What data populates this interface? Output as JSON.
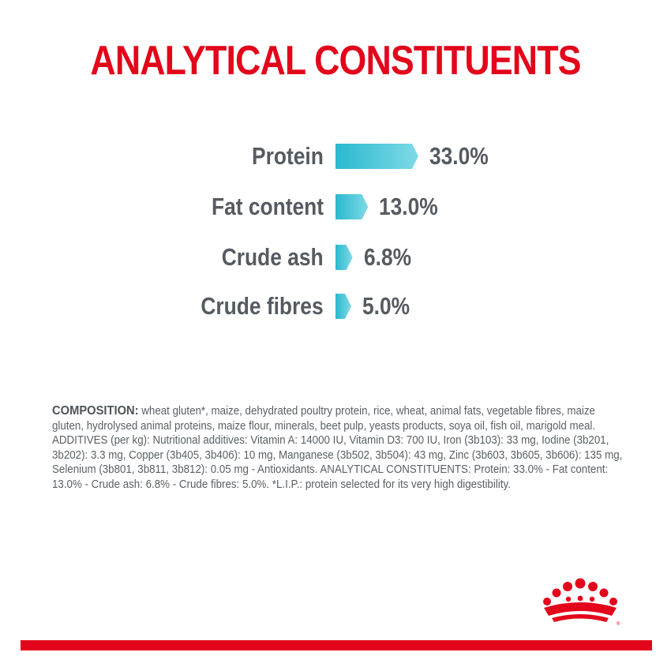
{
  "title": "ANALYTICAL CONSTITUENTS",
  "chart_data": {
    "type": "bar",
    "orientation": "horizontal",
    "categories": [
      "Protein",
      "Fat content",
      "Crude ash",
      "Crude fibres"
    ],
    "values": [
      33.0,
      13.0,
      6.8,
      5.0
    ],
    "value_labels": [
      "33.0%",
      "13.0%",
      "6.8%",
      "5.0%"
    ],
    "unit": "%",
    "title": "ANALYTICAL CONSTITUENTS",
    "xlabel": "",
    "ylabel": "",
    "grid": false,
    "legend": "none",
    "bar_color": "#2ab8cf"
  },
  "composition": {
    "heading": "COMPOSITION:",
    "text": " wheat gluten*, maize, dehydrated poultry protein, rice, wheat, animal fats, vegetable fibres, maize gluten, hydrolysed animal proteins, maize flour, minerals, beet pulp, yeasts products, soya oil, fish oil, marigold meal. ADDITIVES (per kg): Nutritional additives: Vitamin A: 14000 IU, Vitamin D3: 700 IU, Iron (3b103): 33 mg, Iodine (3b201, 3b202): 3.3 mg, Copper (3b405, 3b406): 10 mg, Manganese (3b502, 3b504): 43 mg, Zinc (3b603, 3b605, 3b606): 135 mg, Selenium (3b801, 3b811, 3b812): 0.05 mg - Antioxidants. ANALYTICAL CONSTITUENTS: Protein: 33.0% - Fat content: 13.0% - Crude ash: 6.8% - Crude fibres: 5.0%. *L.I.P.: protein selected for its very high digestibility."
  },
  "colors": {
    "brand_red": "#e3051b",
    "bar_start": "#2ab8cf",
    "bar_end": "#7fdae6",
    "text_gray": "#555b61"
  },
  "logo": {
    "icon": "crown-icon"
  }
}
